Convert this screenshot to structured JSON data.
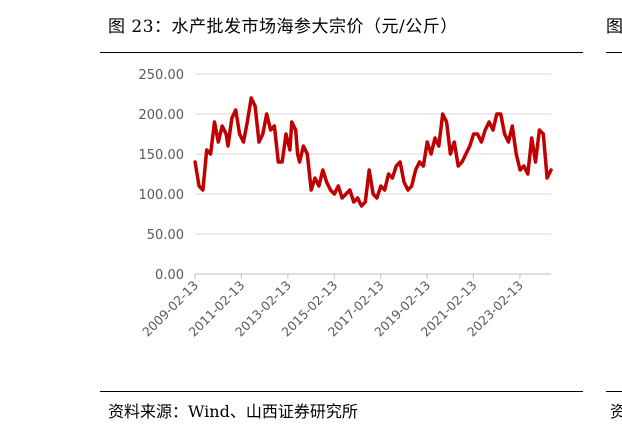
{
  "figure": {
    "title": "图 23：水产批发市场海参大宗价（元/公斤）",
    "source": "资料来源：Wind、山西证券研究所",
    "edge_title_fragment": "图",
    "edge_source_fragment": "资"
  },
  "chart_data": {
    "type": "line",
    "title": "",
    "xlabel": "",
    "ylabel": "",
    "ylim": [
      0,
      250
    ],
    "yticks": [
      "0.00",
      "50.00",
      "100.00",
      "150.00",
      "200.00",
      "250.00"
    ],
    "xticks": [
      "2009-02-13",
      "2011-02-13",
      "2013-02-13",
      "2015-02-13",
      "2017-02-13",
      "2019-02-13",
      "2021-02-13",
      "2023-02-13"
    ],
    "grid": "horizontal",
    "line_color": "#c00000",
    "series": [
      {
        "name": "",
        "x": [
          "2009-02",
          "2009-04",
          "2009-06",
          "2009-08",
          "2009-10",
          "2009-12",
          "2010-02",
          "2010-04",
          "2010-06",
          "2010-07",
          "2010-09",
          "2010-11",
          "2011-01",
          "2011-03",
          "2011-05",
          "2011-07",
          "2011-09",
          "2011-11",
          "2012-01",
          "2012-03",
          "2012-05",
          "2012-07",
          "2012-09",
          "2012-11",
          "2013-01",
          "2013-03",
          "2013-04",
          "2013-06",
          "2013-07",
          "2013-08",
          "2013-10",
          "2013-12",
          "2014-02",
          "2014-04",
          "2014-06",
          "2014-08",
          "2014-10",
          "2014-12",
          "2015-02",
          "2015-04",
          "2015-06",
          "2015-08",
          "2015-10",
          "2015-12",
          "2016-02",
          "2016-04",
          "2016-06",
          "2016-08",
          "2016-10",
          "2016-12",
          "2017-02",
          "2017-04",
          "2017-06",
          "2017-08",
          "2017-10",
          "2017-12",
          "2018-02",
          "2018-04",
          "2018-06",
          "2018-08",
          "2018-10",
          "2018-12",
          "2019-02",
          "2019-04",
          "2019-06",
          "2019-08",
          "2019-10",
          "2019-12",
          "2020-02",
          "2020-04",
          "2020-06",
          "2020-08",
          "2020-10",
          "2020-12",
          "2021-02",
          "2021-04",
          "2021-06",
          "2021-08",
          "2021-10",
          "2021-12",
          "2022-02",
          "2022-04",
          "2022-06",
          "2022-08",
          "2022-10",
          "2022-12",
          "2023-02",
          "2023-04",
          "2023-06",
          "2023-08",
          "2023-10",
          "2023-12",
          "2024-02",
          "2024-04",
          "2024-06"
        ],
        "values": [
          140,
          110,
          105,
          155,
          150,
          190,
          165,
          185,
          175,
          160,
          195,
          205,
          175,
          165,
          190,
          220,
          210,
          165,
          175,
          200,
          180,
          185,
          140,
          140,
          175,
          155,
          190,
          180,
          150,
          140,
          160,
          150,
          105,
          120,
          110,
          130,
          115,
          105,
          100,
          110,
          95,
          100,
          105,
          90,
          95,
          85,
          90,
          130,
          100,
          95,
          110,
          105,
          125,
          120,
          135,
          140,
          115,
          105,
          110,
          130,
          140,
          135,
          165,
          150,
          170,
          160,
          200,
          190,
          150,
          165,
          135,
          140,
          150,
          160,
          175,
          175,
          165,
          180,
          190,
          180,
          200,
          200,
          175,
          165,
          185,
          150,
          130,
          135,
          125,
          170,
          140,
          180,
          175,
          120,
          130
        ]
      }
    ]
  }
}
